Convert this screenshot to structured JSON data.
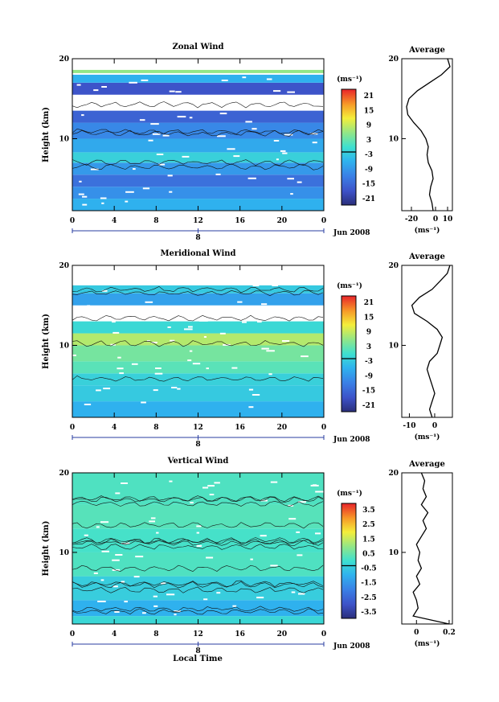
{
  "figure": {
    "xlabel": "Local Time",
    "date_label": "Jun 2008",
    "day_label": "8"
  },
  "chart_data": [
    {
      "type": "heatmap",
      "title": "Zonal Wind",
      "xlabel": "",
      "ylabel": "Height (km)",
      "x_ticks": [
        "0",
        "4",
        "8",
        "12",
        "16",
        "20",
        "0"
      ],
      "xlim": [
        0,
        24
      ],
      "y_ticks": [
        "10",
        "20"
      ],
      "ylim": [
        1,
        20
      ],
      "colorbar": {
        "unit": "(ms⁻¹)",
        "ticks": [
          "21",
          "15",
          "9",
          "3",
          "-3",
          "-9",
          "-15",
          "-21"
        ],
        "range": [
          -24,
          24
        ]
      },
      "bands": [
        {
          "y": [
            1.0,
            2.5
          ],
          "value": -6
        },
        {
          "y": [
            2.5,
            4.0
          ],
          "value": -10
        },
        {
          "y": [
            4.0,
            5.5
          ],
          "value": -14
        },
        {
          "y": [
            5.5,
            7.0
          ],
          "value": -9
        },
        {
          "y": [
            7.0,
            8.3
          ],
          "value": -2
        },
        {
          "y": [
            8.3,
            10.0
          ],
          "value": -7
        },
        {
          "y": [
            10.0,
            12.0
          ],
          "value": -11
        },
        {
          "y": [
            12.0,
            13.5
          ],
          "value": -16
        },
        {
          "y": [
            15.5,
            17.0
          ],
          "value": -18
        },
        {
          "y": [
            17.0,
            18.0
          ],
          "value": -6
        },
        {
          "y": [
            18.2,
            18.6
          ],
          "value": 6
        }
      ]
    },
    {
      "type": "heatmap",
      "title": "Meridional Wind",
      "xlabel": "",
      "ylabel": "Height (km)",
      "x_ticks": [
        "0",
        "4",
        "8",
        "12",
        "16",
        "20",
        "0"
      ],
      "xlim": [
        0,
        24
      ],
      "y_ticks": [
        "10",
        "20"
      ],
      "ylim": [
        1,
        20
      ],
      "colorbar": {
        "unit": "(ms⁻¹)",
        "ticks": [
          "21",
          "15",
          "9",
          "3",
          "-3",
          "-9",
          "-15",
          "-21"
        ],
        "range": [
          -24,
          24
        ]
      },
      "bands": [
        {
          "y": [
            1.0,
            3.0
          ],
          "value": -6
        },
        {
          "y": [
            3.0,
            5.0
          ],
          "value": -3
        },
        {
          "y": [
            5.0,
            6.5
          ],
          "value": -2
        },
        {
          "y": [
            6.5,
            8.0
          ],
          "value": 2
        },
        {
          "y": [
            8.0,
            10.0
          ],
          "value": 4
        },
        {
          "y": [
            10.0,
            11.5
          ],
          "value": 8
        },
        {
          "y": [
            11.5,
            13.0
          ],
          "value": -1
        },
        {
          "y": [
            15.0,
            16.5
          ],
          "value": -8
        },
        {
          "y": [
            16.5,
            17.5
          ],
          "value": -3
        }
      ]
    },
    {
      "type": "heatmap",
      "title": "Vertical Wind",
      "xlabel": "Local Time",
      "ylabel": "Height (km)",
      "x_ticks": [
        "0",
        "4",
        "8",
        "12",
        "16",
        "20",
        "0"
      ],
      "xlim": [
        0,
        24
      ],
      "y_ticks": [
        "10",
        "20"
      ],
      "ylim": [
        1,
        20
      ],
      "colorbar": {
        "unit": "(ms⁻¹)",
        "ticks": [
          "3.5",
          "2.5",
          "1.5",
          "0.5",
          "-0.5",
          "-1.5",
          "-2.5",
          "-3.5"
        ],
        "range": [
          -4,
          4
        ]
      },
      "bands": [
        {
          "y": [
            1.0,
            2.0
          ],
          "value": -0.2
        },
        {
          "y": [
            2.0,
            4.0
          ],
          "value": -1.0
        },
        {
          "y": [
            4.0,
            7.0
          ],
          "value": -0.4
        },
        {
          "y": [
            7.0,
            10.0
          ],
          "value": 0.2
        },
        {
          "y": [
            10.0,
            13.0
          ],
          "value": 0.1
        },
        {
          "y": [
            13.0,
            16.0
          ],
          "value": 0.3
        },
        {
          "y": [
            16.0,
            20.0
          ],
          "value": 0.2
        }
      ]
    },
    {
      "type": "line",
      "title": "Average",
      "xlabel": "(ms⁻¹)",
      "ylabel": "",
      "x_ticks": [
        "-20",
        "0",
        "10"
      ],
      "xlim": [
        -28,
        14
      ],
      "y_ticks": [
        "10",
        "20"
      ],
      "ylim": [
        1,
        20
      ],
      "x": [
        -2,
        -3,
        -5,
        -4,
        -2,
        -3,
        -6,
        -7,
        -6,
        -8,
        -12,
        -18,
        -23,
        -24,
        -22,
        -15,
        -5,
        5,
        12,
        10
      ],
      "y": [
        1,
        2,
        3,
        4,
        5,
        6,
        7,
        8,
        9,
        10,
        11,
        12,
        13,
        14,
        15,
        16,
        17,
        18,
        19,
        20
      ]
    },
    {
      "type": "line",
      "title": "Average",
      "xlabel": "(ms⁻¹)",
      "ylabel": "",
      "x_ticks": [
        "-10",
        "0"
      ],
      "xlim": [
        -13,
        7
      ],
      "y_ticks": [
        "10",
        "20"
      ],
      "ylim": [
        1,
        20
      ],
      "x": [
        -1,
        -2,
        -1,
        0,
        -1,
        -2,
        -3,
        -2,
        1,
        2,
        3,
        1,
        -3,
        -8,
        -9,
        -6,
        -1,
        2,
        5,
        6
      ],
      "y": [
        1,
        2,
        3,
        4,
        5,
        6,
        7,
        8,
        9,
        10,
        11,
        12,
        13,
        14,
        15,
        16,
        17,
        18,
        19,
        20
      ]
    },
    {
      "type": "line",
      "title": "Average",
      "xlabel": "(ms⁻¹)",
      "ylabel": "",
      "x_ticks": [
        "0",
        "0.2"
      ],
      "xlim": [
        -0.09,
        0.22
      ],
      "y_ticks": [
        "10",
        "20"
      ],
      "ylim": [
        1,
        20
      ],
      "x": [
        0.2,
        -0.02,
        0.01,
        0.0,
        -0.02,
        0.02,
        0.0,
        0.03,
        0.01,
        0.02,
        0.0,
        0.03,
        0.06,
        0.04,
        0.07,
        0.03,
        0.06,
        0.04,
        0.05,
        0.03
      ],
      "y": [
        1,
        2,
        3,
        4,
        5,
        6,
        7,
        8,
        9,
        10,
        11,
        12,
        13,
        14,
        15,
        16,
        17,
        18,
        19,
        20
      ]
    }
  ]
}
